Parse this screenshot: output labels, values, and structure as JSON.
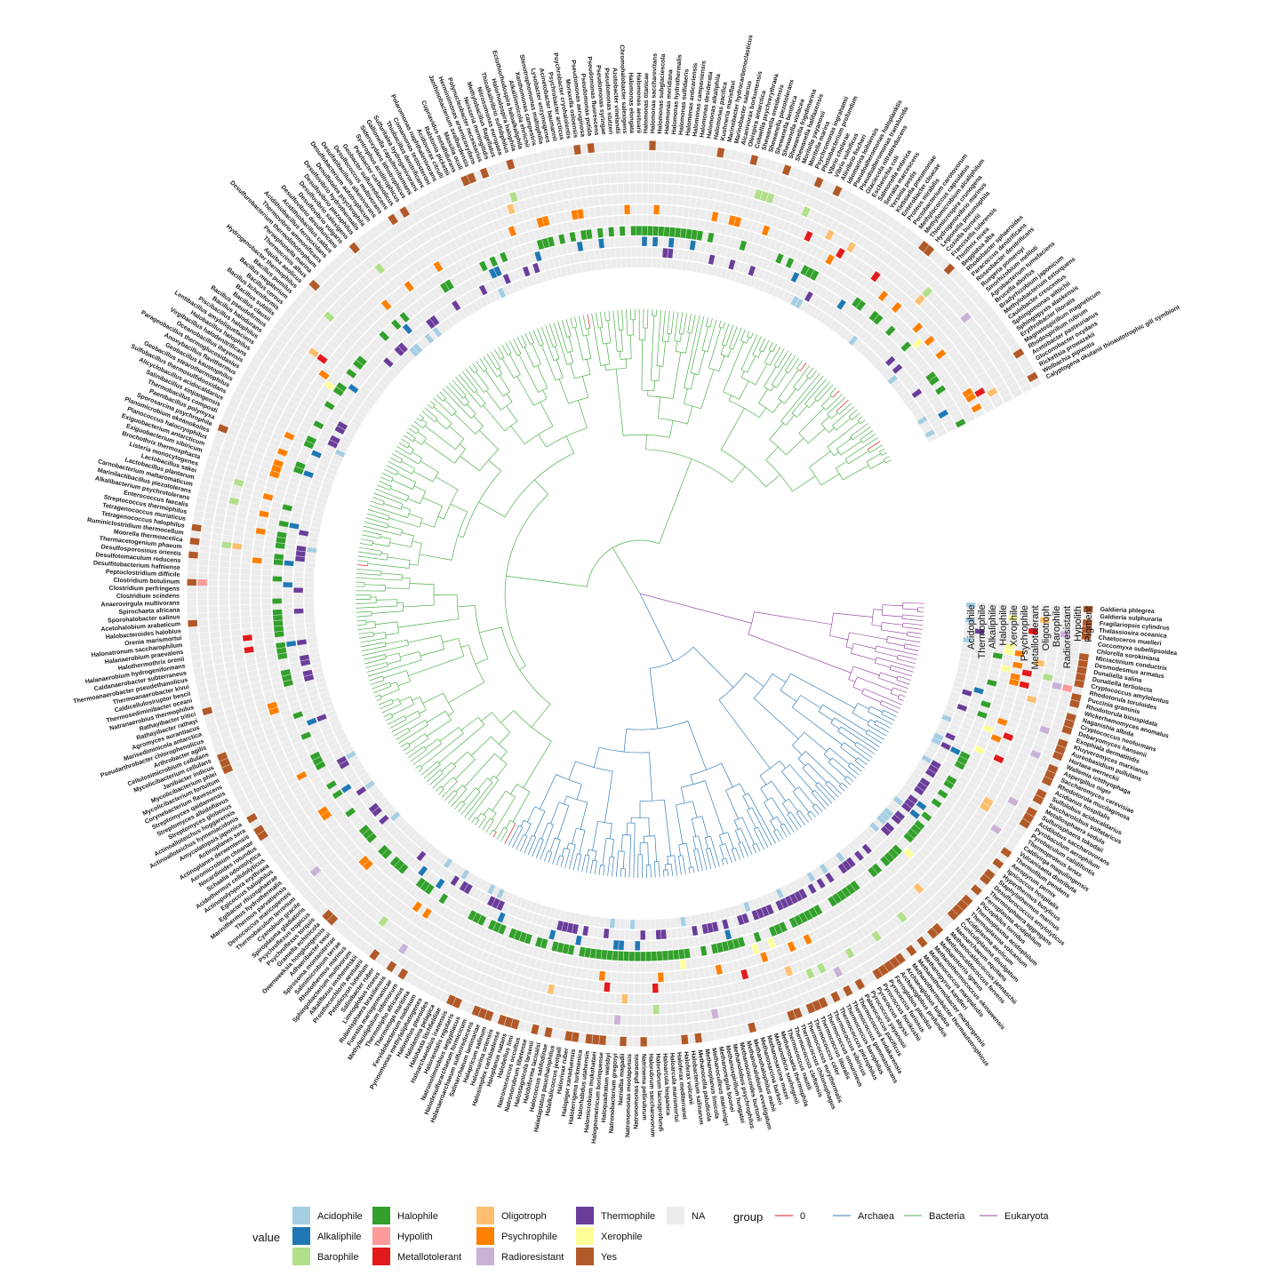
{
  "chart_data": {
    "type": "circular-phylogenetic-tree-heatmap",
    "heatmap_columns": [
      "Acidophile",
      "Thermophile",
      "Alkaliphile",
      "Halophile",
      "Xerophile",
      "Psychrophile",
      "Metallotolerant",
      "Oligotroph",
      "Barophile",
      "Radioresistant",
      "Hypolith",
      "Pigment"
    ],
    "groups": [
      {
        "name": "0",
        "color": "#e41a1c"
      },
      {
        "name": "Archaea",
        "color": "#377eb8"
      },
      {
        "name": "Bacteria",
        "color": "#4daf4a"
      },
      {
        "name": "Eukaryota",
        "color": "#984ea3"
      }
    ],
    "values": [
      {
        "name": "Acidophile",
        "color": "#a6cee3"
      },
      {
        "name": "Alkaliphile",
        "color": "#1f78b4"
      },
      {
        "name": "Barophile",
        "color": "#b2df8a"
      },
      {
        "name": "Halophile",
        "color": "#33a02c"
      },
      {
        "name": "Hypolith",
        "color": "#fb9a99"
      },
      {
        "name": "Metallotolerant",
        "color": "#e31a1c"
      },
      {
        "name": "Oligotroph",
        "color": "#fdbf6f"
      },
      {
        "name": "Psychrophile",
        "color": "#ff7f00"
      },
      {
        "name": "Radioresistant",
        "color": "#cab2d6"
      },
      {
        "name": "Thermophile",
        "color": "#6a3d9a"
      },
      {
        "name": "Xerophile",
        "color": "#ffff99"
      },
      {
        "name": "Yes",
        "color": "#b15928"
      },
      {
        "name": "NA",
        "color": "#ececec"
      }
    ],
    "legend": {
      "value_title": "value",
      "group_title": "group",
      "position": "bottom"
    },
    "clades": [
      {
        "group": "Eukaryota",
        "taxa": [
          "Galdieria phlegrea",
          "Galdieria sulphuraria",
          "Fragilariopsis cylindrus",
          "Thalassiosira oceanica",
          "Chaetoceros muelleri",
          "Coccomyxa subellipsoidea",
          "Chlorella sorokiniana",
          "Micractinium conductrix",
          "Desmodesmus armatus",
          "Dunaliella salina",
          "Dunaliella tertiolecta",
          "Cryptococcus amylolentus",
          "Rhodotorula toruloides",
          "Puccinia graminis",
          "Rhodotorula bicuspidata",
          "Wickerhamomyces anomalus",
          "Naganishia albida",
          "Cryptococcus neoformans",
          "Debaryomyces hansenii",
          "Exophiala dermatitidis",
          "Kluyveromyces marxianus",
          "Aureobasidium pullulans",
          "Hortaea werneckii",
          "Wallemia ichthyophaga",
          "Aspergillus niger",
          "Saccharomyces cerevisiae",
          "Rhodotorula mucilaginosa"
        ]
      },
      {
        "group": "Archaea",
        "taxa": [
          "Acidianus hospitalis",
          "Sulfolobus acidocaldarius",
          "Saccharolobus solfataricus",
          "Metallosphaera sedula",
          "Sulfurisphaera tokodaii",
          "Acidilobus saccharovorans",
          "Pyrobaculum aerophilum",
          "Pyrobaculum calidifontis",
          "Thermoproteus tenax",
          "Caldivirga maquilingensis",
          "Vulcanisaeta distributa",
          "Thermofilum pendens",
          "Aeropyrum pernix",
          "Ignicoccus hospitalis",
          "Hyperthermus butylicus",
          "Staphylothermus marinus",
          "Desulfurococcus amylolyticus",
          "Thermosphaera aggregans",
          "Ferroplasma acidiphilum",
          "Picrophilus torridus",
          "Thermoplasma acidophilum",
          "Thermoplasma volcanium",
          "Acidiplasma aeolicum",
          "Cuniculiplasma divulgatum",
          "Nanoarchaeum equitans",
          "Methanocaldococcus jannaschii",
          "Methanocaldococcus fervens",
          "Methanotorris igneus",
          "Methanothermococcus okinawensis",
          "Methanococcus maripaludis",
          "Methanopyrus kandleri",
          "Methanothermobacter marburgensis",
          "Methanothermobacter thermautotrophicus",
          "Archaeoglobus fulgidus",
          "Archaeoglobus profundus",
          "Ferroglobus placidus",
          "Pyrococcus furiosus",
          "Pyrococcus horikoshii",
          "Pyrococcus abyssi",
          "Pyrococcus yayanosii",
          "Palaeococcus pacificus",
          "Thermococcus kodakarensis",
          "Thermococcus gammatolerans",
          "Thermococcus barophilus",
          "Thermococcus piezophilus",
          "Thermococcus sibiricus",
          "Thermococcus onnurineus",
          "Thermococcus litoralis",
          "Thermococcus celer",
          "Thermococcus eurythermalis",
          "Thermococcus chitonophagus",
          "Thermococcus cleftensis",
          "Thermococcus nautili",
          "Methanosaeta thermophila",
          "Methanothrix soehngenii",
          "Methanosarcina mazei",
          "Methanosarcina barkeri",
          "Methanohalophilus mahii",
          "Methanohalobium evestigatum",
          "Methanococcoides burtonii",
          "Methanolobus psychrophilus",
          "Methanospirillum hungatei",
          "Methanoregula boonei",
          "Methanoculleus marisnigri",
          "Methanoplanus limicola",
          "Methanocella paludicola",
          "Halobacterium salinarum",
          "Haloferax volcanii",
          "Haloferax mediterranei",
          "Haloarcula marismortui",
          "Haloarcula hispanica",
          "Halorubrum lacusprofundi",
          "Halorubrum saccharovorum",
          "Natrinema pellirubrum",
          "Natronomonas pharaonis",
          "Natronomonas moolapensis",
          "Natrialba magadii",
          "Natronobacterium gregoryi",
          "Haloquadratum walsbyi",
          "Halogeometricum borinquense",
          "Halomicrobium mukohataei",
          "Halorhabdus utahensis",
          "Haloterrigena turkmenica",
          "Halopiger xanaduensis",
          "Halovivax ruber",
          "Halalkalicoccus jeotgali",
          "Haladaptatus paucihalophilus",
          "Halococcus salifodinae",
          "Halobiforma lacisalsi",
          "Halostagnicola larsenii",
          "Natronorubrum tibetense",
          "Natronococcus occultus",
          "Halobellus limi",
          "Haloplanus natans",
          "Halosimplex carlsbadense",
          "Halomarina oriensis",
          "Halapricum salinum",
          "Salinarchaeum laminariae",
          "Halanaeroarchaeum sulfurireducens",
          "Halodesulfurarchaeum formicicum",
          "Natronolimnobius aegyptiacus",
          "Halorientalis regularis",
          "Haloarchaeobius iranensis",
          "Halohasta litchfieldiae",
          "Halolamina pelagica",
          "Halonotius pteroides"
        ]
      },
      {
        "group": "Bacteria",
        "taxa": [
          "Pyrinomonas methylaliphatogenes",
          "Fervidobacterium nodosum",
          "Thermotoga maritima",
          "Thermosipho africanus",
          "Methylacidiphilum infernorum",
          "Fuerstia marisgermanicae",
          "Rubinisphaera brasiliensis",
          "Limnoglobus roseus",
          "Salinibacter ruber",
          "Pelodictyon luteolum",
          "Prosthecochloris aestuarii",
          "Alkaliflexus imshenetskii",
          "Sphingobacterium multivorum",
          "Rhodothermus marinus",
          "Salinimicrobium terrae",
          "Spirosoma montaniterrae",
          "Adhaeribacter swui",
          "Owenweeksia hongkongensis",
          "Gramella echinicola",
          "Psychroflexus torquis",
          "Psychroflexus tropicus",
          "Spiroplasma gladiatoris",
          "Cyanobium gracile",
          "Thermobaculum terrenum",
          "Deinococcus maricopensis",
          "Thermus parvatiensis",
          "Marinithermus hydrothermalis",
          "Egibacter rhizosphaerae",
          "Egicoccus halophilus",
          "Actinopolyspora erythraea",
          "Acidothermus cellulolyticus",
          "Schaalia odontolytica",
          "Nocardioides rotundus",
          "Aeromicrobium choanae",
          "Actinoplanes derwentensis",
          "Actinoplanes sera",
          "Amycolatopsis japonica",
          "Actinoalloteichus hymeniacidonis",
          "Actinoalloteichus hoggarensis",
          "Streptomyces globosus",
          "Streptomyces albidoflavus",
          "Streptomyces qaidamensis",
          "Corynebacterium flavescens",
          "Mycolicibacterium fortuitum",
          "Mycolicibacterium phlei",
          "Janibacter indicus",
          "Mycolicibacterium cellulans",
          "Cellulosimicrobium cellulans",
          "Arthrobacter agilis",
          "Pseudarthrobacter chlorophenolicus",
          "Marisediminicola antarctica",
          "Agromyces aurantiacus",
          "Rathayibacter rathayi",
          "Rathayibacter tritici",
          "Natranaerobius thermophilus",
          "Thermosediminibacter oceani",
          "Caldicellulosiruptor bescii",
          "Thermoanaerobacter kivui",
          "Thermoanaerobacter pseudethanolicus",
          "Caldanaerobacter subterraneus",
          "Halanaerobium hydrogeniformans",
          "Halothermothrix orenii",
          "Halanaerobium praevalens",
          "Halonatronum saccharophilum",
          "Orenia marismortui",
          "Halobacteroides halobius",
          "Acetohalobium arabaticum",
          "Sporohalobacter salinus",
          "Spirochaeta africana",
          "Anaerovirgula multivorans",
          "Clostridium scindens",
          "Clostridium perfringens",
          "Clostridium botulinum",
          "Peptoclostridium difficile",
          "Desulfitobacterium hafniense",
          "Desulfotomaculum reducens",
          "Desulfosporosinus orientis",
          "Thermacetogenium phaeum",
          "Moorella thermoacetica",
          "Ruminiclostridium thermocellum",
          "Tetragenococcus halophilus",
          "Tetragenococcus muriaticus",
          "Streptococcus thermophilus",
          "Enterococcus faecalis",
          "Alkalibacterium psychrotolerans",
          "Marinilactibacillus piezotolerans",
          "Carnobacterium maltaromaticum",
          "Lactobacillus plantarum",
          "Lactobacillus sakei",
          "Listeria monocytogenes",
          "Brochothrix thermosphacta",
          "Exiguobacterium sibiricum",
          "Exiguobacterium antarcticum",
          "Planococcus halocryophilus",
          "Planomicrobium okeanokoites",
          "Sporosarcina psychrophila",
          "Paenibacillus polymyxa",
          "Thermobacillus composti",
          "Salinibacillus xinjiangensis",
          "Alicyclobacillus acidocaldarius",
          "Sulfobacillus thermosulfidooxidans",
          "Geobacillus stearothermophilus",
          "Geobacillus kaustophilus",
          "Anoxybacillus flavithermus",
          "Parageobacillus thermoglucosidasius",
          "Oceanobacillus iheyensis",
          "Virgibacillus halodenitrificans",
          "Halobacillus halophilus",
          "Lentibacillus amyloliquefaciens",
          "Piscibacillus halophilus",
          "Bacillus halodurans",
          "Bacillus pseudofirmus",
          "Bacillus clausii",
          "Bacillus subtilis",
          "Bacillus licheniformis",
          "Bacillus cereus",
          "Bacillus megaterium",
          "Bacillus pumilus",
          "Hydrogenobacter thermophilus",
          "Aquifex aeolicus",
          "Thermocrinis albus",
          "Persephonella marina",
          "Desulfurobacterium thermolithotrophum",
          "Thermovibrio ammonificans",
          "Acidithiobacillus ferrooxidans",
          "Acidithiobacillus caldus",
          "Desulfovibrio desulfuricans",
          "Desulfovibrio vulgaris",
          "Desulfovibrio salexigens",
          "Desulfovibrio piezophilus",
          "Desulfovibrio hydrothermalis",
          "Desulfotalea psychrophila",
          "Desulfobacterium autotrophicum",
          "Desulfatibacillum alkenivorans",
          "Desulfococcus multivorans",
          "Geobacter sulfurreducens",
          "Pelobacter carbinolicus",
          "Syntrophus aciditrophicus",
          "Sideroxydans lithotrophicus",
          "Gallionella capsiferriformans",
          "Sulfuritalea hydrogenivorans",
          "Thiobacillus denitrificans",
          "Comamonas testosteroni",
          "Polaromonas naphthalenivorans",
          "Acidovorax citrulli",
          "Ralstonia pickettii",
          "Cupriavidus metallidurans",
          "Massilia oculi",
          "Janthinobacterium svalbardensis",
          "Herminiimonas arsenicoxydans",
          "Polynucleobacter necessarius",
          "Neisseria meningitidis",
          "Methylobacillus flagellatus",
          "Nitrosomonas europaea",
          "Thioalkalivibrio sulfidiphilus",
          "Halorhodospira halophila",
          "Ectothiorhodospira haloalkaliphila",
          "Alkalilimnicola ehrlichii",
          "Xanthomonas campestris",
          "Stenotrophomonas maltophilia",
          "Lysobacter enzymogenes",
          "Acinetobacter baumannii",
          "Psychrobacter arcticus",
          "Psychrobacter cryohalolentis",
          "Moraxella osloensis",
          "Pseudomonas aeruginosa",
          "Pseudomonas putida",
          "Pseudomonas fluorescens",
          "Pseudomonas syringae",
          "Pseudomonas stutzeri",
          "Azotobacter vinelandii",
          "Chromohalobacter salexigens",
          "Halomonas elongata",
          "Halomonas aestuarii",
          "Halomonas titanicae",
          "Halomonas saccharevitans",
          "Halomonas subglaciescola",
          "Halomonas meridiana",
          "Halomonas hydrothermalis",
          "Halomonas sulfidaeris",
          "Halomonas anticariensis",
          "Halomonas campaniensis",
          "Halomonas desiderata",
          "Halomonas alkaliphila",
          "Halomonas pacifica",
          "Kushneria marisflavi",
          "Marinobacter hydrocarbonoclasticus",
          "Marinobacter salarius",
          "Alcanivorax borkumensis",
          "Oleispira antarctica",
          "Colwellia psychrerythraea",
          "Shewanella oneidensis",
          "Shewanella piezotolerans",
          "Shewanella benthica",
          "Shewanella violacea",
          "Shewanella frigidimarina",
          "Shewanella halifaxensis",
          "Moritella yayanosii",
          "Moritella marina",
          "Psychromonas ingrahamii",
          "Photobacterium profundum",
          "Vibrio cholerae",
          "Vibrio vulnificus",
          "Aliivibrio fischeri",
          "Idiomarina loihiensis",
          "Pseudoalteromonas haloplanktis",
          "Pseudoalteromonas translucida",
          "Glaciecola nitratireducens",
          "Escherichia coli",
          "Salmonella enterica",
          "Serratia marcescens",
          "Yersinia pestis",
          "Klebsiella pneumoniae",
          "Enterobacter cloacae",
          "Proteus mirabilis",
          "Pectobacterium carotovorum",
          "Methylococcus capsulatus",
          "Methylomicrobium alcaliphilum",
          "Thiomicrospira crunogena",
          "Hydrogenovibrio marinus",
          "Legionella pneumophila",
          "Coxiella burnetii",
          "Francisella tularensis",
          "Thiothrix nivea",
          "Beggiatoa alba",
          "Rhodobacter sphaeroides",
          "Paracoccus denitrificans",
          "Roseobacter denitrificans",
          "Ruegeria pomeroyi",
          "Sinorhizobium meliloti",
          "Agrobacterium tumefaciens",
          "Brucella abortus",
          "Bradyrhizobium japonicum",
          "Methylobacterium extorquens",
          "Caulobacter crescentus",
          "Sphingomonas wittichii",
          "Sphingopyxis alaskensis",
          "Erythrobacter litoralis",
          "Magnetospirillum magneticum",
          "Rhodospirillum rubrum",
          "Acetobacter pasteurianus",
          "Gluconobacter oxydans",
          "Rickettsia prowazekii",
          "Wolbachia pipientis",
          "Calyptogena okutanii thioautotrophic gill symbiont"
        ]
      }
    ],
    "title": "",
    "note": ""
  }
}
